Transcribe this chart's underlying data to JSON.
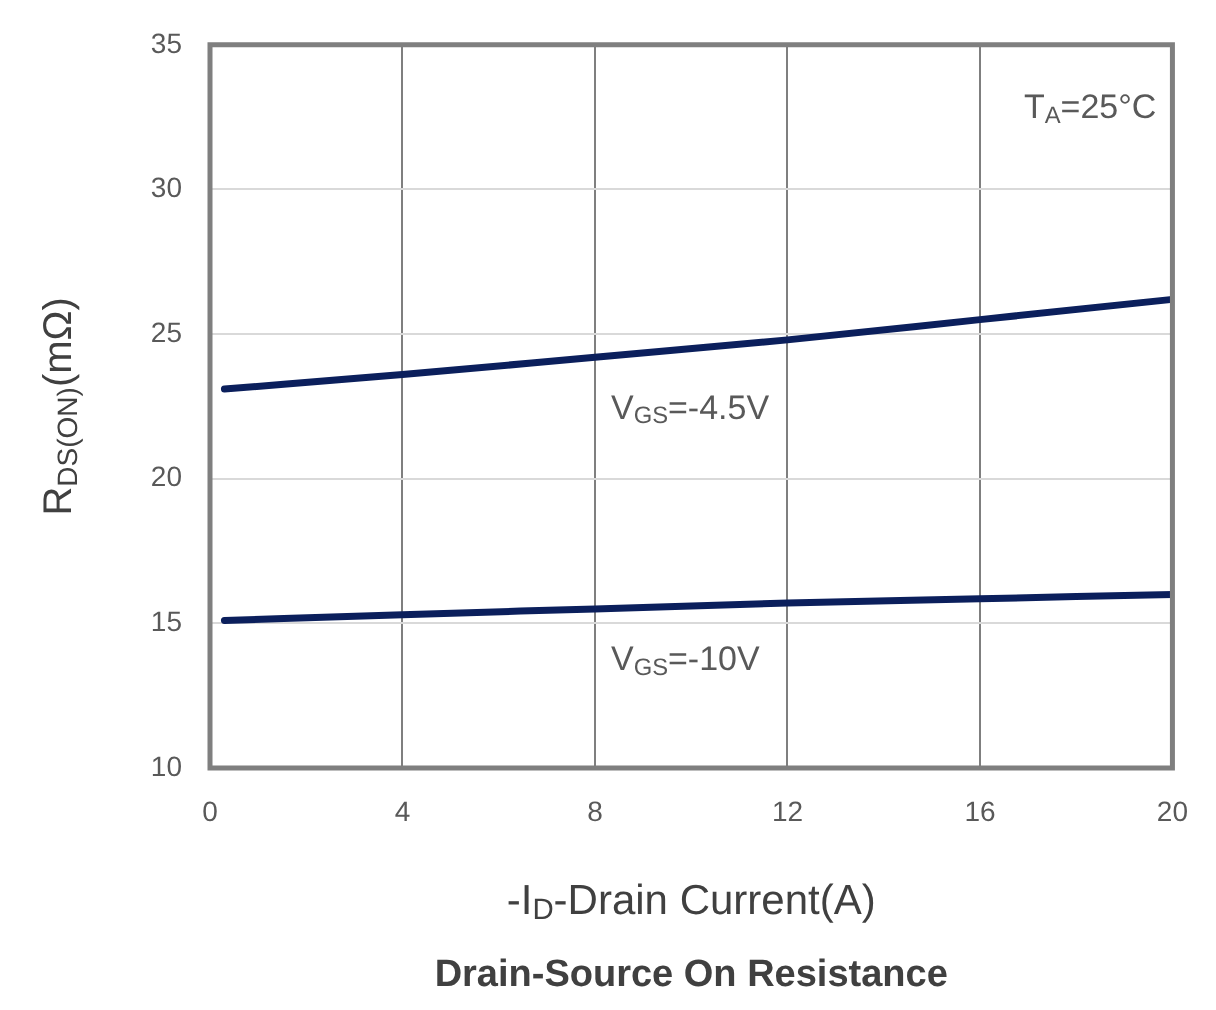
{
  "chart_data": {
    "type": "line",
    "title": "Drain-Source On Resistance",
    "xlabel": "-I$_{D}$-Drain Current(A)",
    "ylabel": "R$_{DS(ON)}$(mΩ)",
    "x": [
      0.3,
      4,
      8,
      12,
      16,
      20
    ],
    "series": [
      {
        "name": "V$_{GS}$=-4.5V",
        "color": "#0b1f5c",
        "values": [
          23.1,
          23.6,
          24.2,
          24.8,
          25.5,
          26.2
        ]
      },
      {
        "name": "V$_{GS}$=-10V",
        "color": "#0b1f5c",
        "values": [
          15.1,
          15.3,
          15.5,
          15.7,
          15.85,
          16.0
        ]
      }
    ],
    "xlim": [
      0,
      20
    ],
    "xticks": [
      0,
      4,
      8,
      12,
      16,
      20
    ],
    "ylim": [
      10,
      35
    ],
    "yticks": [
      10,
      15,
      20,
      25,
      30,
      35
    ],
    "grid": true,
    "marker": "none",
    "line_style": "solid",
    "annotations": [
      "T$_{A}$=25°C"
    ]
  }
}
